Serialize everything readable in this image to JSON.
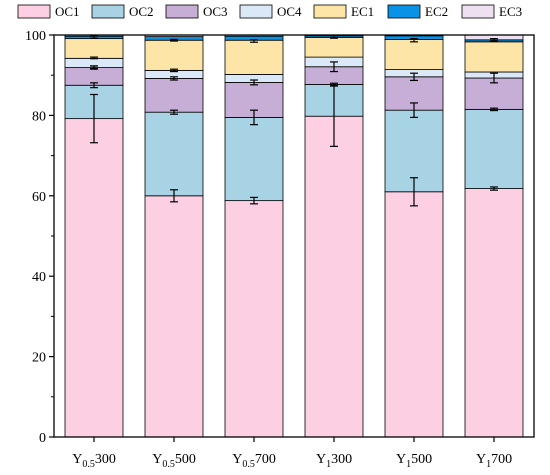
{
  "chart_data": {
    "type": "bar",
    "stacked": true,
    "categories": [
      {
        "main": "Y",
        "sub": "0.5",
        "suffix": "300"
      },
      {
        "main": "Y",
        "sub": "0.5",
        "suffix": "500"
      },
      {
        "main": "Y",
        "sub": "0.5",
        "suffix": "700"
      },
      {
        "main": "Y",
        "sub": "1",
        "suffix": "300"
      },
      {
        "main": "Y",
        "sub": "1",
        "suffix": "500"
      },
      {
        "main": "Y",
        "sub": "1",
        "suffix": "700"
      }
    ],
    "series": [
      {
        "name": "OC1",
        "color": "#fdcfe3",
        "values": [
          79.2,
          60.0,
          58.8,
          79.8,
          61.0,
          61.8
        ],
        "errors": [
          6.0,
          1.5,
          0.8,
          7.5,
          3.5,
          0.4
        ]
      },
      {
        "name": "OC2",
        "color": "#a8d3e5",
        "values": [
          8.3,
          20.8,
          20.7,
          7.9,
          20.3,
          19.7
        ],
        "errors": [
          0.6,
          0.5,
          1.8,
          0.3,
          1.8,
          0.3
        ]
      },
      {
        "name": "OC3",
        "color": "#c6aed6",
        "values": [
          4.4,
          8.4,
          8.7,
          4.4,
          8.3,
          7.8
        ],
        "errors": [
          0.4,
          0.4,
          0.6,
          1.2,
          0.9,
          1.2
        ]
      },
      {
        "name": "OC4",
        "color": "#dbe8f7",
        "values": [
          2.3,
          2.0,
          2.0,
          2.4,
          1.8,
          1.5
        ],
        "errors": [
          0,
          0,
          0,
          0,
          0,
          0
        ]
      },
      {
        "name": "EC1",
        "color": "#fde5a8",
        "values": [
          4.9,
          7.5,
          8.5,
          4.9,
          7.5,
          7.5
        ],
        "errors": [
          0,
          0,
          0,
          0,
          0,
          0
        ]
      },
      {
        "name": "EC2",
        "color": "#0a92e6",
        "values": [
          0.6,
          0.9,
          1.0,
          0.4,
          0.9,
          0.5
        ],
        "errors": [
          0,
          0,
          0,
          0,
          0,
          0
        ]
      },
      {
        "name": "EC3",
        "color": "#eee0f0",
        "values": [
          0.3,
          0.4,
          0.3,
          0.2,
          0.2,
          1.2
        ],
        "errors": [
          0,
          0,
          0,
          0,
          0,
          0
        ]
      }
    ],
    "extra_errors": [
      {
        "category": 0,
        "y": 92.0,
        "err": 0.3
      },
      {
        "category": 0,
        "y": 94.3,
        "err": 0.2
      },
      {
        "category": 0,
        "y": 99.5,
        "err": 0.3
      },
      {
        "category": 1,
        "y": 91.2,
        "err": 0.3
      },
      {
        "category": 1,
        "y": 98.7,
        "err": 0.2
      },
      {
        "category": 2,
        "y": 98.5,
        "err": 0.3
      },
      {
        "category": 3,
        "y": 99.5,
        "err": 0.3
      },
      {
        "category": 4,
        "y": 98.7,
        "err": 0.4
      },
      {
        "category": 5,
        "y": 98.8,
        "err": 0.3
      }
    ],
    "yticks": [
      0,
      20,
      40,
      60,
      80,
      100
    ],
    "ylim": [
      0,
      100
    ],
    "xlabel": "",
    "ylabel": "",
    "legend_position": "top"
  }
}
